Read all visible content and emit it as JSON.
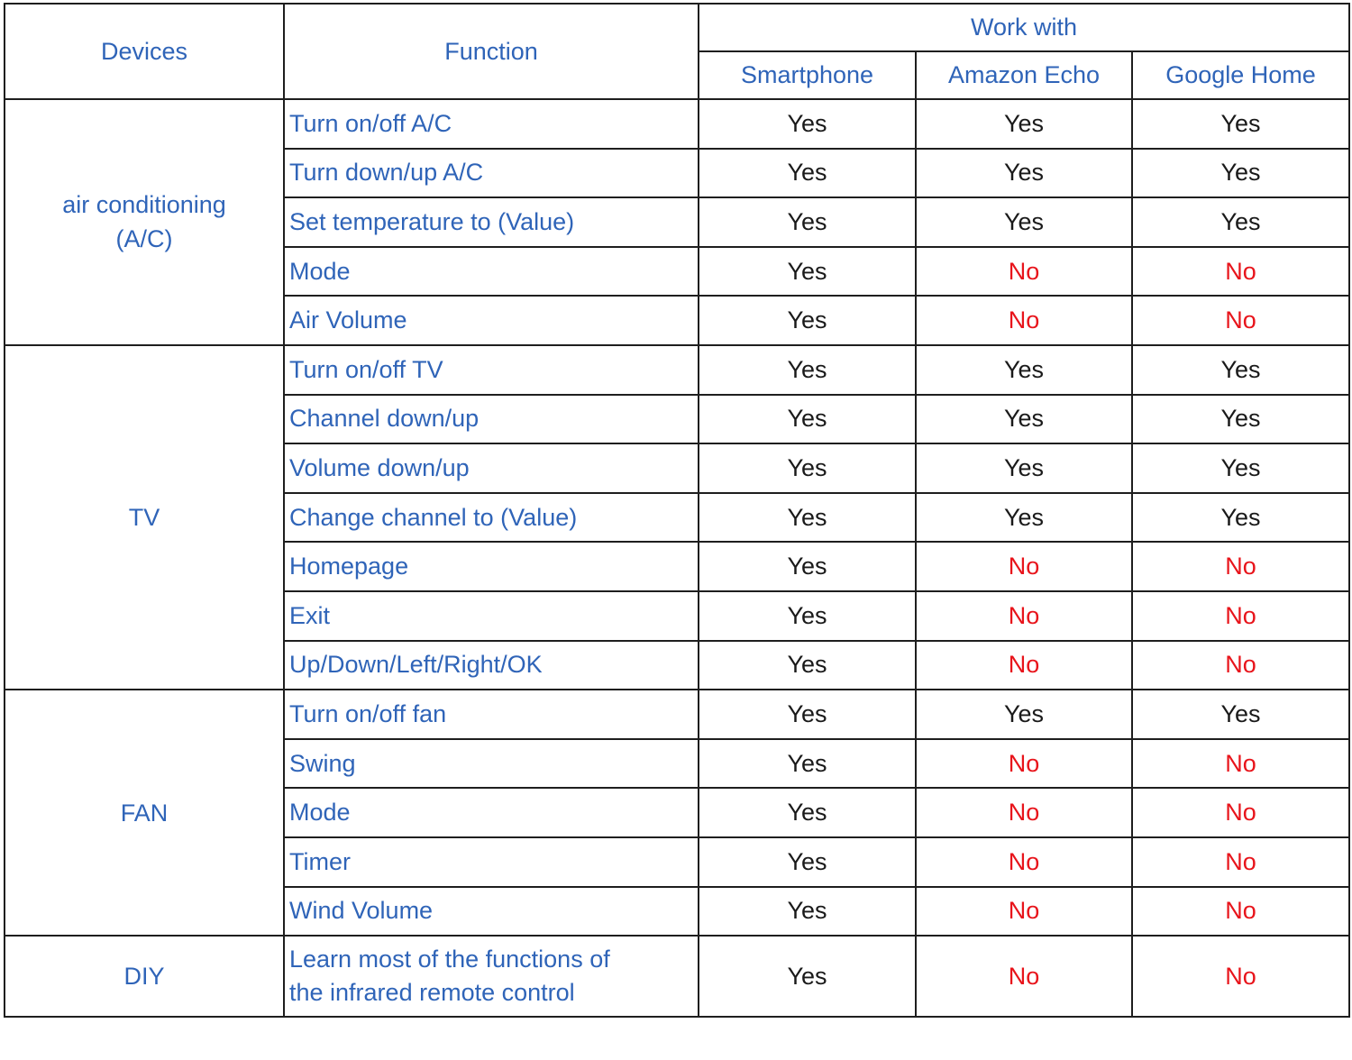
{
  "header": {
    "devices": "Devices",
    "function": "Function",
    "work_with": "Work with",
    "platforms": [
      "Smartphone",
      "Amazon Echo",
      "Google Home"
    ]
  },
  "colors": {
    "header_text": "#2f64b8",
    "yes": "#1a1a1a",
    "no": "#e8141b",
    "border": "#1e1e1e"
  },
  "groups": [
    {
      "device": "air conditioning\n(A/C)",
      "rows": [
        {
          "function": "Turn on/off A/C",
          "values": [
            "Yes",
            "Yes",
            "Yes"
          ]
        },
        {
          "function": "Turn down/up A/C",
          "values": [
            "Yes",
            "Yes",
            "Yes"
          ]
        },
        {
          "function": "Set temperature to (Value)",
          "values": [
            "Yes",
            "Yes",
            "Yes"
          ]
        },
        {
          "function": "Mode",
          "values": [
            "Yes",
            "No",
            "No"
          ]
        },
        {
          "function": "Air Volume",
          "values": [
            "Yes",
            "No",
            "No"
          ]
        }
      ]
    },
    {
      "device": "TV",
      "rows": [
        {
          "function": "Turn on/off TV",
          "values": [
            "Yes",
            "Yes",
            "Yes"
          ]
        },
        {
          "function": "Channel down/up",
          "values": [
            "Yes",
            "Yes",
            "Yes"
          ]
        },
        {
          "function": "Volume down/up",
          "values": [
            "Yes",
            "Yes",
            "Yes"
          ]
        },
        {
          "function": "Change channel to (Value)",
          "values": [
            "Yes",
            "Yes",
            "Yes"
          ]
        },
        {
          "function": "Homepage",
          "values": [
            "Yes",
            "No",
            "No"
          ]
        },
        {
          "function": "Exit",
          "values": [
            "Yes",
            "No",
            "No"
          ]
        },
        {
          "function": "Up/Down/Left/Right/OK",
          "values": [
            "Yes",
            "No",
            "No"
          ]
        }
      ]
    },
    {
      "device": "FAN",
      "rows": [
        {
          "function": "Turn on/off fan",
          "values": [
            "Yes",
            "Yes",
            "Yes"
          ]
        },
        {
          "function": "Swing",
          "values": [
            "Yes",
            "No",
            "No"
          ]
        },
        {
          "function": "Mode",
          "values": [
            "Yes",
            "No",
            "No"
          ]
        },
        {
          "function": "Timer",
          "values": [
            "Yes",
            "No",
            "No"
          ]
        },
        {
          "function": "Wind Volume",
          "values": [
            "Yes",
            "No",
            "No"
          ]
        }
      ]
    },
    {
      "device": "DIY",
      "rows": [
        {
          "function": "Learn most of the functions of\nthe infrared remote control",
          "values": [
            "Yes",
            "No",
            "No"
          ]
        }
      ]
    }
  ]
}
